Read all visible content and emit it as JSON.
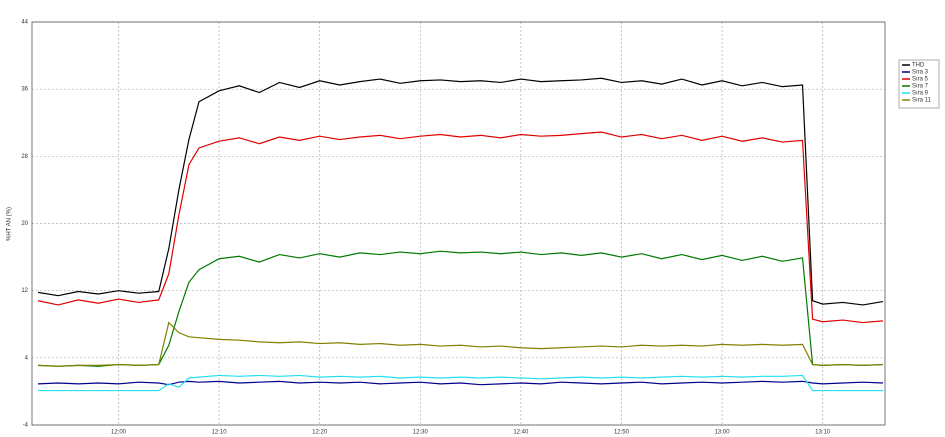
{
  "chart_data": {
    "type": "line",
    "ylabel": "%HT AN (%)",
    "x": [
      712,
      714,
      716,
      718,
      720,
      722,
      724,
      725,
      726,
      727,
      728,
      730,
      732,
      734,
      736,
      738,
      740,
      742,
      744,
      746,
      748,
      750,
      752,
      754,
      756,
      758,
      760,
      762,
      764,
      766,
      768,
      770,
      772,
      774,
      776,
      778,
      780,
      782,
      784,
      786,
      788,
      789,
      790,
      792,
      794,
      796
    ],
    "series": [
      {
        "name": "THD",
        "color": "#000000",
        "values": [
          11.8,
          11.4,
          11.9,
          11.6,
          12.0,
          11.7,
          11.9,
          17,
          24,
          30,
          34.5,
          35.8,
          36.4,
          35.6,
          36.8,
          36.2,
          37.0,
          36.5,
          36.9,
          37.2,
          36.7,
          37.0,
          37.1,
          36.9,
          37.0,
          36.8,
          37.2,
          36.9,
          37.0,
          37.1,
          37.3,
          36.8,
          37.0,
          36.6,
          37.2,
          36.5,
          37.0,
          36.4,
          36.8,
          36.3,
          36.5,
          10.8,
          10.4,
          10.6,
          10.3,
          10.7
        ]
      },
      {
        "name": "Sıra 3",
        "color": "#00008b",
        "values": [
          0.9,
          1.0,
          0.9,
          1.0,
          0.9,
          1.1,
          1.0,
          0.8,
          1.1,
          1.2,
          1.1,
          1.2,
          1.0,
          1.1,
          1.2,
          1.0,
          1.1,
          1.0,
          1.1,
          0.9,
          1.0,
          1.1,
          0.9,
          1.0,
          0.8,
          0.9,
          1.0,
          0.9,
          1.1,
          1.0,
          0.9,
          1.0,
          1.1,
          0.9,
          1.0,
          1.1,
          1.0,
          1.1,
          1.2,
          1.1,
          1.2,
          1.0,
          0.9,
          1.0,
          1.1,
          1.0
        ]
      },
      {
        "name": "Sıra 5",
        "color": "#e00000",
        "values": [
          10.8,
          10.3,
          10.9,
          10.5,
          11.0,
          10.6,
          10.9,
          14,
          21,
          27,
          29.0,
          29.8,
          30.2,
          29.5,
          30.3,
          29.9,
          30.4,
          30.0,
          30.3,
          30.5,
          30.1,
          30.4,
          30.6,
          30.3,
          30.5,
          30.2,
          30.6,
          30.4,
          30.5,
          30.7,
          30.9,
          30.3,
          30.6,
          30.1,
          30.5,
          29.9,
          30.4,
          29.8,
          30.2,
          29.7,
          29.9,
          8.6,
          8.3,
          8.5,
          8.2,
          8.4
        ]
      },
      {
        "name": "Sıra 7",
        "color": "#007a00",
        "values": [
          3.1,
          3.0,
          3.1,
          3.0,
          3.2,
          3.1,
          3.2,
          5.5,
          9.5,
          13,
          14.5,
          15.8,
          16.1,
          15.4,
          16.3,
          15.9,
          16.4,
          16.0,
          16.5,
          16.3,
          16.6,
          16.4,
          16.7,
          16.5,
          16.6,
          16.4,
          16.6,
          16.3,
          16.5,
          16.2,
          16.5,
          16.0,
          16.4,
          15.8,
          16.3,
          15.7,
          16.2,
          15.6,
          16.1,
          15.5,
          15.9,
          3.2,
          3.1,
          3.2,
          3.1,
          3.2
        ]
      },
      {
        "name": "Sıra 9",
        "color": "#22e0f0",
        "values": [
          0.1,
          0.1,
          0.1,
          0.1,
          0.1,
          0.1,
          0.1,
          0.9,
          0.5,
          1.6,
          1.7,
          1.9,
          1.8,
          1.9,
          1.8,
          1.9,
          1.7,
          1.8,
          1.7,
          1.8,
          1.6,
          1.7,
          1.6,
          1.7,
          1.6,
          1.7,
          1.6,
          1.5,
          1.6,
          1.7,
          1.6,
          1.7,
          1.6,
          1.7,
          1.8,
          1.7,
          1.8,
          1.7,
          1.8,
          1.8,
          1.9,
          0.1,
          0.1,
          0.1,
          0.1,
          0.1
        ]
      },
      {
        "name": "Sıra 11",
        "color": "#808000",
        "values": [
          3.1,
          3.0,
          3.1,
          3.1,
          3.2,
          3.1,
          3.2,
          8.2,
          7.0,
          6.5,
          6.4,
          6.2,
          6.1,
          5.9,
          5.8,
          5.9,
          5.7,
          5.8,
          5.6,
          5.7,
          5.5,
          5.6,
          5.4,
          5.5,
          5.3,
          5.4,
          5.2,
          5.1,
          5.2,
          5.3,
          5.4,
          5.3,
          5.5,
          5.4,
          5.5,
          5.4,
          5.6,
          5.5,
          5.6,
          5.5,
          5.6,
          3.2,
          3.1,
          3.2,
          3.1,
          3.2
        ]
      }
    ],
    "xlim": [
      711.4,
      796.2
    ],
    "xticks": [
      {
        "value": 720,
        "label": "12:00"
      },
      {
        "value": 730,
        "label": "12:10"
      },
      {
        "value": 740,
        "label": "12:20"
      },
      {
        "value": 750,
        "label": "12:30"
      },
      {
        "value": 760,
        "label": "12:40"
      },
      {
        "value": 770,
        "label": "12:50"
      },
      {
        "value": 780,
        "label": "13:00"
      },
      {
        "value": 790,
        "label": "13:10"
      }
    ],
    "ylim": [
      -4,
      44
    ],
    "yticks": [
      -4,
      4,
      12,
      20,
      28,
      36,
      44
    ],
    "grid": true,
    "legend": "right"
  }
}
